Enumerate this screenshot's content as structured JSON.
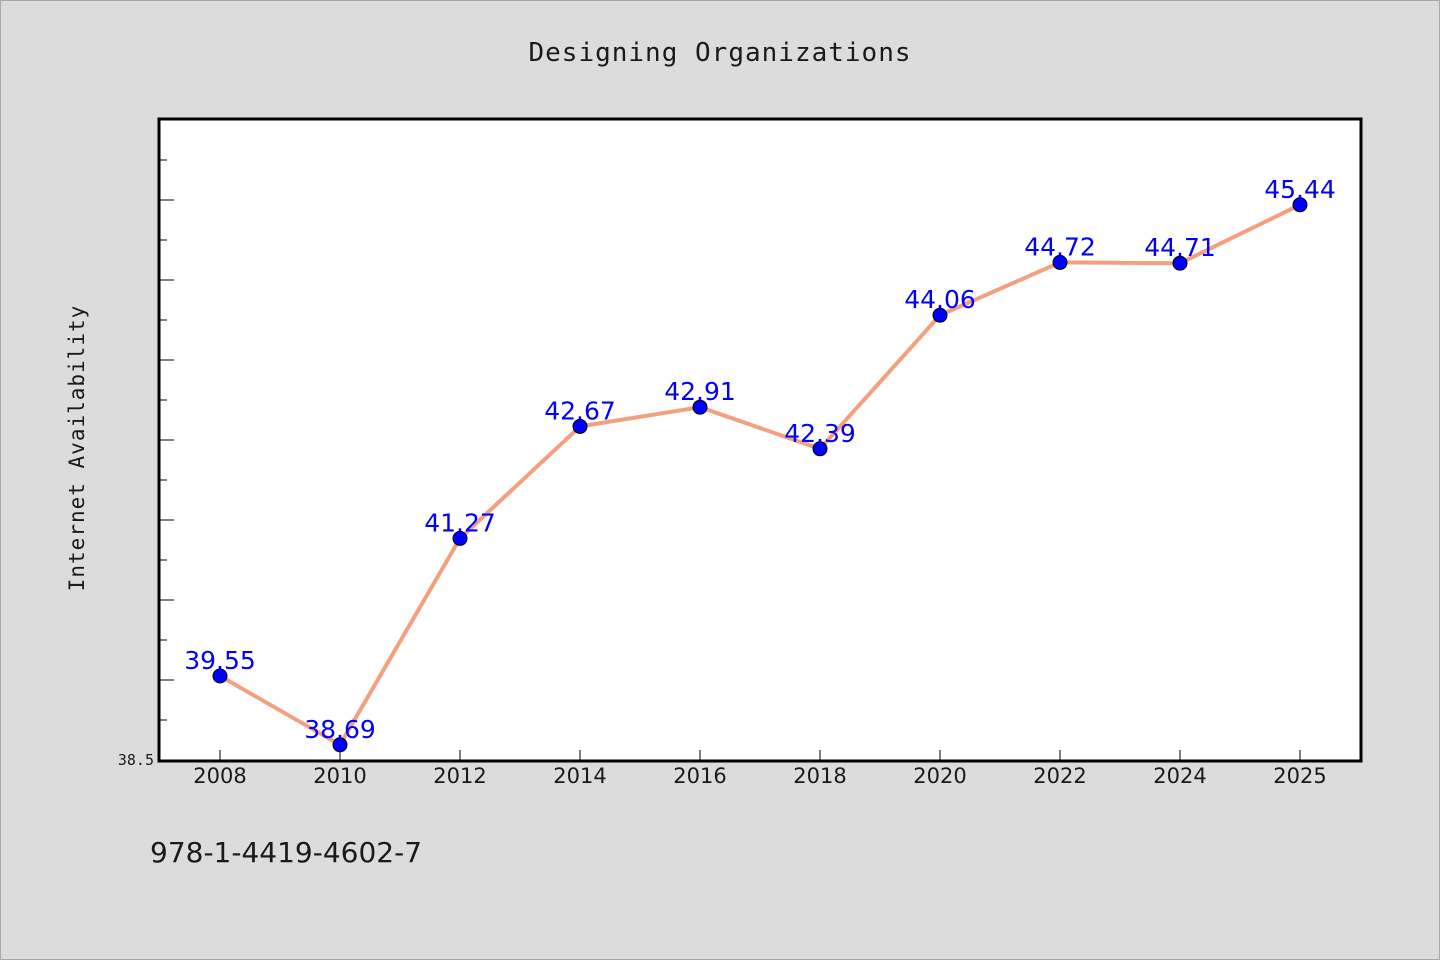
{
  "colors": {
    "background": "#dcdcdc",
    "plot_background": "#ffffff",
    "line": "#f4a07f",
    "marker": "#0000ff",
    "label": "#0000ff"
  },
  "footer": {
    "text": "978-1-4419-4602-7"
  },
  "chart_data": {
    "type": "line",
    "title": "Designing Organizations",
    "xlabel": "",
    "ylabel": "Internet Availability",
    "categories": [
      "2008",
      "2010",
      "2012",
      "2014",
      "2016",
      "2018",
      "2020",
      "2022",
      "2024",
      "2025"
    ],
    "series": [
      {
        "values": [
          39.55,
          38.69,
          41.27,
          42.67,
          42.91,
          42.39,
          44.06,
          44.72,
          44.71,
          45.44
        ],
        "labels": [
          "39.55",
          "38.69",
          "41.27",
          "42.67",
          "42.91",
          "42.39",
          "44.06",
          "44.72",
          "44.71",
          "45.44"
        ]
      }
    ],
    "ylim": [
      38.5,
      46.5
    ],
    "y_tick_labels": [
      "38.5"
    ],
    "y_minor_tick_step": 0.5,
    "grid": false,
    "legend": "none"
  }
}
